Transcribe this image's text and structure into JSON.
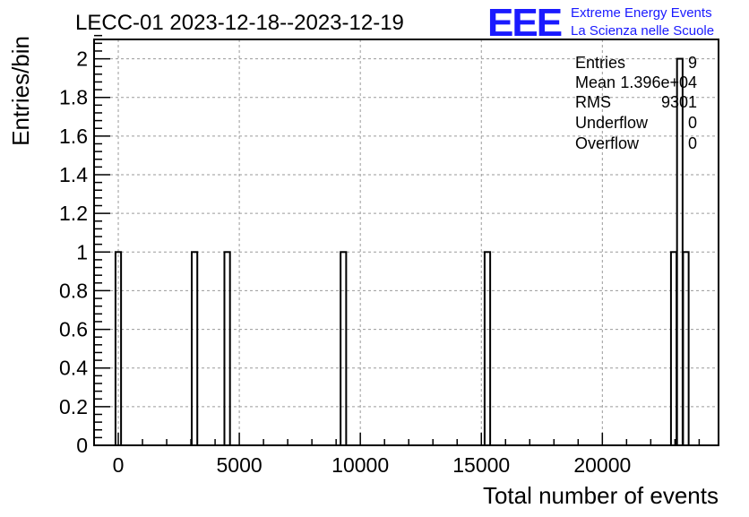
{
  "chart_data": {
    "type": "bar",
    "title": "LECC-01 2023-12-18--2023-12-19",
    "xlabel": "Total number of events",
    "ylabel": "Entries/bin",
    "xlim": [
      -1000,
      24800
    ],
    "ylim": [
      0,
      2.1
    ],
    "bin_width": 230,
    "x_ticks": [
      0,
      5000,
      10000,
      15000,
      20000
    ],
    "x_tick_labels": [
      "0",
      "5000",
      "10000",
      "15000",
      "20000"
    ],
    "y_ticks": [
      0,
      0.2,
      0.4,
      0.6,
      0.8,
      1,
      1.2,
      1.4,
      1.6,
      1.8,
      2
    ],
    "y_tick_labels": [
      "0",
      "0.2",
      "0.4",
      "0.6",
      "0.8",
      "1",
      "1.2",
      "1.4",
      "1.6",
      "1.8",
      "2"
    ],
    "grid": true,
    "bins": [
      {
        "x": 0,
        "value": 1
      },
      {
        "x": 3150,
        "value": 1
      },
      {
        "x": 4500,
        "value": 1
      },
      {
        "x": 9300,
        "value": 1
      },
      {
        "x": 15250,
        "value": 1
      },
      {
        "x": 22950,
        "value": 1
      },
      {
        "x": 23200,
        "value": 2
      },
      {
        "x": 23450,
        "value": 1
      }
    ],
    "stats": {
      "entries_label": "Entries",
      "entries_value": "9",
      "mean_label": "Mean",
      "mean_value": "1.396e+04",
      "rms_label": "RMS",
      "rms_value": "9301",
      "underflow_label": "Underflow",
      "underflow_value": "0",
      "overflow_label": "Overflow",
      "overflow_value": "0"
    },
    "logo": {
      "mark": "EEE",
      "line1": "Extreme Energy Events",
      "line2": "La Scienza nelle Scuole",
      "color": "#1a1aff"
    }
  }
}
